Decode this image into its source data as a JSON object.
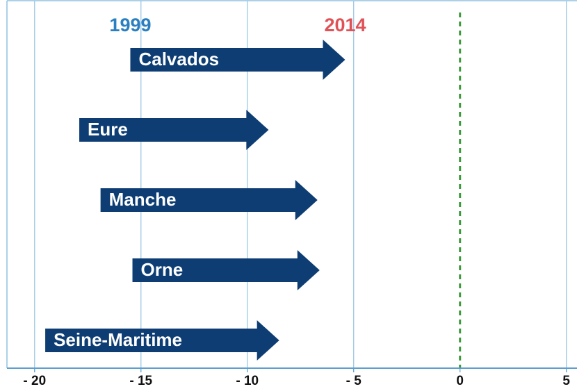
{
  "chart_data": {
    "type": "arrow",
    "categories": [
      "Calvados",
      "Eure",
      "Manche",
      "Orne",
      "Seine-Maritime"
    ],
    "series": [
      {
        "name": "1999",
        "color": "#2a7fc0",
        "values": [
          -15.5,
          -17.9,
          -16.9,
          -15.4,
          -19.5
        ]
      },
      {
        "name": "2014",
        "color": "#e05258",
        "values": [
          -5.4,
          -9.0,
          -6.7,
          -6.6,
          -8.5
        ]
      }
    ],
    "arrow_color": "#0d3d73",
    "xlim": [
      -21.3,
      5.5
    ],
    "xticks": [
      {
        "value": -20,
        "label": "- 20"
      },
      {
        "value": -15,
        "label": "- 15"
      },
      {
        "value": -10,
        "label": "- 10"
      },
      {
        "value": -5,
        "label": "- 5"
      },
      0,
      5
    ],
    "grid": true,
    "reference_x": 0,
    "reference_color": "#3a9a3a"
  }
}
